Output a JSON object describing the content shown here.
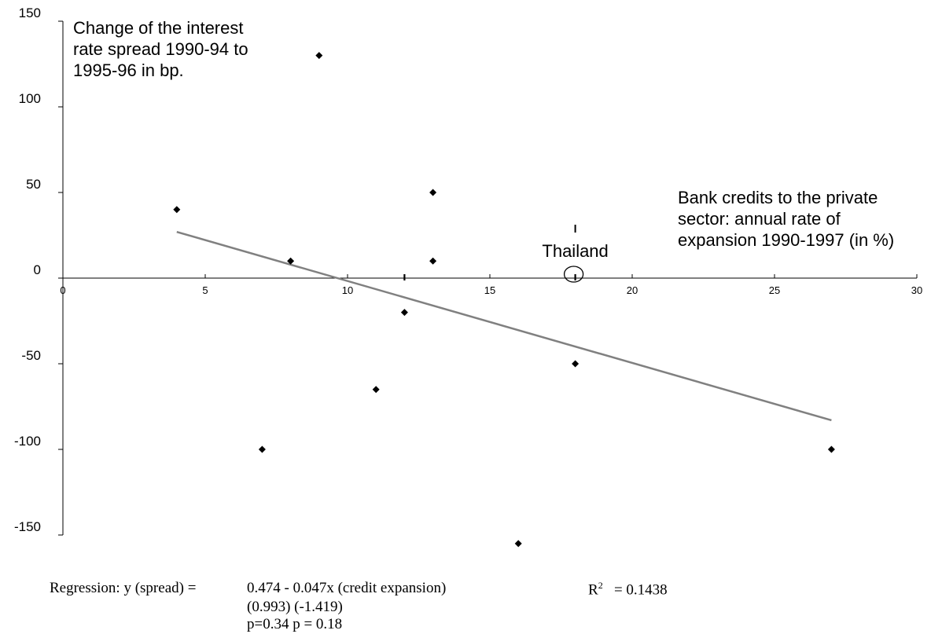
{
  "chart_data": {
    "type": "scatter",
    "title": "",
    "xlabel": "Bank credits to the private sector: annual rate of expansion 1990-1997 (in %)",
    "ylabel": "Change of the interest rate spread 1990-94 to 1995-96 in bp.",
    "xlabel_lines": [
      "Bank credits to the private",
      "sector: annual rate of",
      "expansion 1990-1997 (in %)"
    ],
    "ylabel_lines": [
      "Change of the interest",
      "rate spread 1990-94 to",
      "1995-96 in bp."
    ],
    "xlim": [
      0,
      30
    ],
    "ylim": [
      -150,
      150
    ],
    "x_ticks": [
      "0",
      "5",
      "10",
      "15",
      "20",
      "25",
      "30"
    ],
    "x_tick_values": [
      0,
      5,
      10,
      15,
      20,
      25,
      30
    ],
    "y_ticks": [
      "150",
      "100",
      "50",
      "0",
      "-50",
      "-100",
      "-150"
    ],
    "y_tick_values": [
      150,
      100,
      50,
      0,
      -50,
      -100,
      -150
    ],
    "grid": false,
    "points": [
      {
        "x": 4,
        "y": 40
      },
      {
        "x": 7,
        "y": -100
      },
      {
        "x": 8,
        "y": 10
      },
      {
        "x": 9,
        "y": 130
      },
      {
        "x": 11,
        "y": -65
      },
      {
        "x": 12,
        "y": -20
      },
      {
        "x": 13,
        "y": 50
      },
      {
        "x": 13,
        "y": 10
      },
      {
        "x": 16,
        "y": -155
      },
      {
        "x": 18,
        "y": -50
      },
      {
        "x": 27,
        "y": -100
      }
    ],
    "trendline": {
      "x": [
        4,
        27
      ],
      "y": [
        27,
        -83
      ]
    },
    "highlight": {
      "label": "Thailand",
      "x": 18,
      "y": 0
    },
    "markers_x": [
      12,
      18
    ],
    "regression": {
      "line1_label": "Regression: y (spread) =",
      "equation": "0.474 - 0.047x (credit expansion)",
      "t_stats": "(0.993)  (-1.419)",
      "p_values": "p=0.34  p = 0.18",
      "r2_label": "R",
      "r2_sup": "2",
      "r2_value": "= 0.1438"
    },
    "colors": {
      "points": "#000000",
      "trendline": "#808080",
      "axes": "#000000"
    }
  }
}
